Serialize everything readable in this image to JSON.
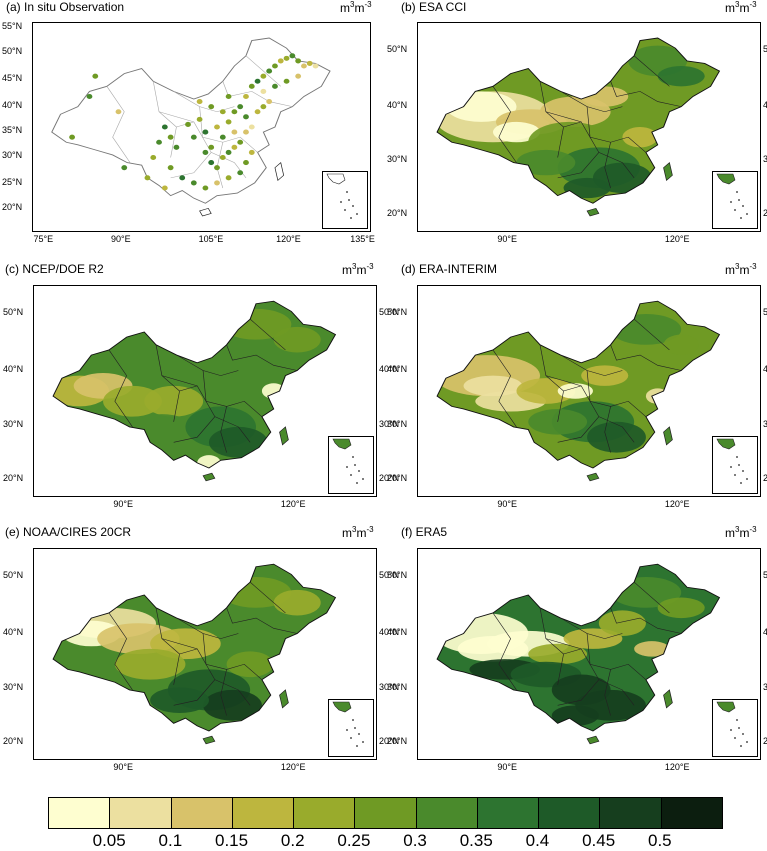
{
  "panels": [
    {
      "title": "(a) In situ Observation",
      "unit_base": "m",
      "unit_exp1": "3",
      "unit_mid": "m",
      "unit_exp2": "-3",
      "lat_ticks": [
        "55°N",
        "50°N",
        "45°N",
        "40°N",
        "35°N",
        "30°N",
        "25°N",
        "20°N"
      ],
      "lon_ticks": [
        "75°E",
        "90°E",
        "105°E",
        "120°E",
        "135°E"
      ]
    },
    {
      "title": "(b) ESA CCI",
      "unit_base": "m",
      "unit_exp1": "3",
      "unit_mid": "m",
      "unit_exp2": "-3",
      "lat_ticks": [
        "50°N",
        "40°N",
        "30°N",
        "20°N"
      ],
      "lon_ticks": [
        "90°E",
        "120°E"
      ]
    },
    {
      "title": "(c) NCEP/DOE R2",
      "unit_base": "m",
      "unit_exp1": "3",
      "unit_mid": "m",
      "unit_exp2": "-3",
      "lat_ticks": [
        "50°N",
        "40°N",
        "30°N",
        "20°N"
      ],
      "lon_ticks": [
        "90°E",
        "120°E"
      ]
    },
    {
      "title": "(d) ERA-INTERIM",
      "unit_base": "m",
      "unit_exp1": "3",
      "unit_mid": "m",
      "unit_exp2": "-3",
      "lat_ticks": [
        "50°N",
        "40°N",
        "30°N",
        "20°N"
      ],
      "lon_ticks": [
        "90°E",
        "120°E"
      ]
    },
    {
      "title": "(e) NOAA/CIRES 20CR",
      "unit_base": "m",
      "unit_exp1": "3",
      "unit_mid": "m",
      "unit_exp2": "-3",
      "lat_ticks": [
        "50°N",
        "40°N",
        "30°N",
        "20°N"
      ],
      "lon_ticks": [
        "90°E",
        "120°E"
      ]
    },
    {
      "title": "(f) ERA5",
      "unit_base": "m",
      "unit_exp1": "3",
      "unit_mid": "m",
      "unit_exp2": "-3",
      "lat_ticks": [
        "50°N",
        "40°N",
        "30°N",
        "20°N"
      ],
      "lon_ticks": [
        "90°E",
        "120°E"
      ]
    }
  ],
  "colorbar": {
    "colors": [
      "#fefed0",
      "#ece0a0",
      "#d8c26a",
      "#bdb63e",
      "#99ab2c",
      "#6f9a24",
      "#4a8a2c",
      "#2d7430",
      "#1e5a28",
      "#163e1e",
      "#0c1e0f"
    ],
    "labels": [
      "0.05",
      "0.1",
      "0.15",
      "0.2",
      "0.25",
      "0.3",
      "0.35",
      "0.4",
      "0.45",
      "0.5"
    ]
  },
  "legend_colors": {
    "border": "#000000",
    "province": "#555555"
  }
}
